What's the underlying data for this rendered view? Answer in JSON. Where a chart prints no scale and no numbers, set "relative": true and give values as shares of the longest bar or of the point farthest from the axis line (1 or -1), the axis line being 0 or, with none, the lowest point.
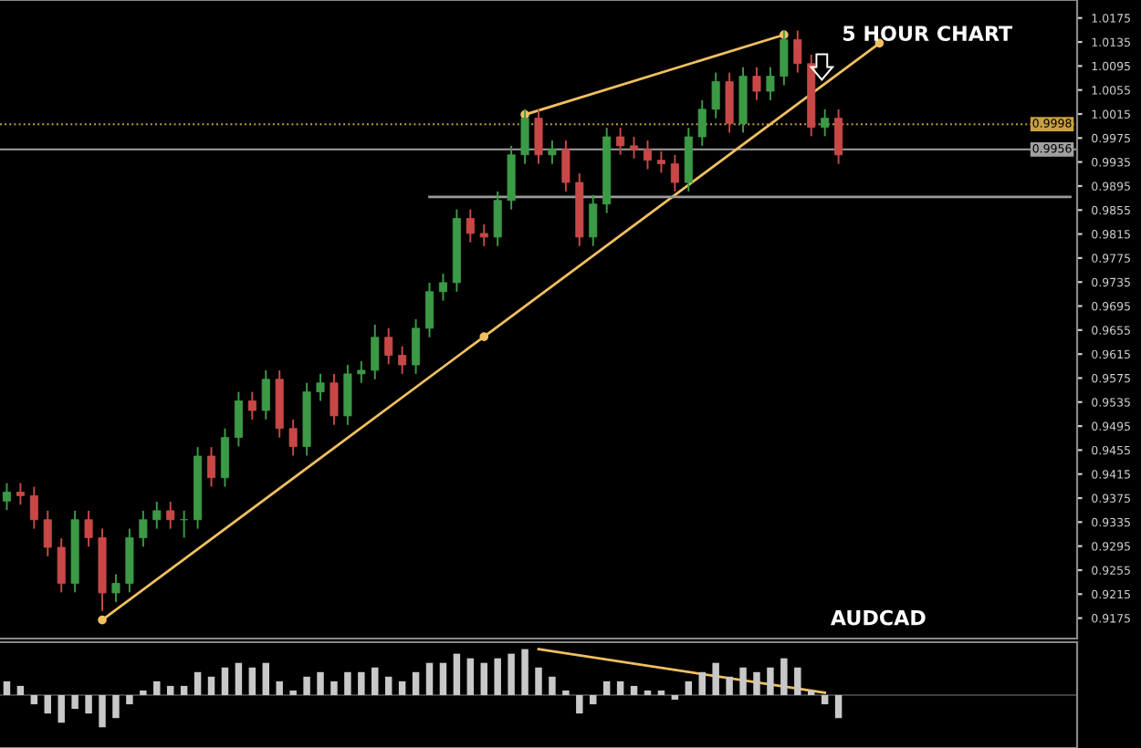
{
  "chart_data": [
    {
      "type": "candlestick",
      "annotations": [
        "5 HOUR CHART",
        "AUDCAD"
      ],
      "grid": false,
      "tick_labels": "y",
      "categories": [
        null,
        null,
        null,
        null,
        null,
        null,
        null,
        null,
        null,
        null,
        null,
        null,
        null,
        null,
        null,
        null,
        null,
        null,
        null,
        null,
        null,
        null,
        null,
        null,
        null,
        null,
        null,
        null,
        null,
        null,
        null,
        null,
        null,
        null,
        null,
        null,
        null,
        null,
        null,
        null,
        null,
        null,
        null,
        null,
        null,
        null,
        null,
        null,
        null,
        null,
        null,
        null,
        null,
        null,
        null,
        null,
        null,
        null,
        null,
        null,
        null,
        null,
        null,
        null,
        null,
        null,
        null,
        null,
        null,
        null,
        null,
        null,
        null,
        null,
        null,
        null,
        null,
        null,
        null
      ],
      "ohlc": [
        [
          0.937,
          0.94,
          0.9355,
          0.9385
        ],
        [
          0.9385,
          0.94,
          0.9364,
          0.9379
        ],
        [
          0.9379,
          0.9394,
          0.9324,
          0.9339
        ],
        [
          0.9339,
          0.9354,
          0.9278,
          0.9293
        ],
        [
          0.9293,
          0.9308,
          0.9218,
          0.9233
        ],
        [
          0.9233,
          0.9354,
          0.9218,
          0.9339
        ],
        [
          0.9339,
          0.9354,
          0.9294,
          0.9309
        ],
        [
          0.9309,
          0.9324,
          0.9187,
          0.9217
        ],
        [
          0.9217,
          0.9248,
          0.9202,
          0.9233
        ],
        [
          0.9233,
          0.9324,
          0.9218,
          0.9309
        ],
        [
          0.9309,
          0.9354,
          0.9294,
          0.9339
        ],
        [
          0.9339,
          0.9369,
          0.9324,
          0.9354
        ],
        [
          0.9354,
          0.9369,
          0.9324,
          0.9339
        ],
        [
          0.9339,
          0.9354,
          0.9309,
          0.9339
        ],
        [
          0.9339,
          0.946,
          0.9324,
          0.9445
        ],
        [
          0.9445,
          0.946,
          0.9394,
          0.9409
        ],
        [
          0.9409,
          0.9491,
          0.9394,
          0.9476
        ],
        [
          0.9476,
          0.9552,
          0.9461,
          0.9537
        ],
        [
          0.9537,
          0.9552,
          0.9506,
          0.9521
        ],
        [
          0.9521,
          0.9588,
          0.9506,
          0.9573
        ],
        [
          0.9573,
          0.9588,
          0.9476,
          0.9491
        ],
        [
          0.9491,
          0.9506,
          0.9446,
          0.9461
        ],
        [
          0.9461,
          0.9567,
          0.9446,
          0.9552
        ],
        [
          0.9552,
          0.9582,
          0.9537,
          0.9567
        ],
        [
          0.9567,
          0.9582,
          0.9497,
          0.9512
        ],
        [
          0.9512,
          0.9597,
          0.9497,
          0.9582
        ],
        [
          0.9582,
          0.9603,
          0.9567,
          0.9588
        ],
        [
          0.9588,
          0.9664,
          0.9573,
          0.9643
        ],
        [
          0.9643,
          0.9658,
          0.9598,
          0.9613
        ],
        [
          0.9613,
          0.9628,
          0.9582,
          0.9597
        ],
        [
          0.9597,
          0.9673,
          0.9582,
          0.9658
        ],
        [
          0.9658,
          0.9734,
          0.9643,
          0.9719
        ],
        [
          0.9719,
          0.9749,
          0.9704,
          0.9734
        ],
        [
          0.9734,
          0.9856,
          0.9719,
          0.9841
        ],
        [
          0.9841,
          0.9856,
          0.9801,
          0.9816
        ],
        [
          0.9816,
          0.9831,
          0.9795,
          0.981
        ],
        [
          0.981,
          0.9886,
          0.9795,
          0.9871
        ],
        [
          0.9871,
          0.9962,
          0.9856,
          0.9947
        ],
        [
          0.9947,
          1.0023,
          0.9932,
          1.0008
        ],
        [
          1.0008,
          1.0023,
          0.9932,
          0.9947
        ],
        [
          0.9947,
          0.9971,
          0.9932,
          0.9956
        ],
        [
          0.9956,
          0.9971,
          0.9886,
          0.9901
        ],
        [
          0.9901,
          0.9916,
          0.9795,
          0.981
        ],
        [
          0.981,
          0.988,
          0.9795,
          0.9865
        ],
        [
          0.9865,
          0.9992,
          0.985,
          0.9977
        ],
        [
          0.9977,
          0.9992,
          0.9947,
          0.9962
        ],
        [
          0.9962,
          0.9977,
          0.9941,
          0.9956
        ],
        [
          0.9956,
          0.9971,
          0.9923,
          0.9938
        ],
        [
          0.9938,
          0.9953,
          0.9917,
          0.9932
        ],
        [
          0.9932,
          0.9947,
          0.9886,
          0.9901
        ],
        [
          0.9901,
          0.9992,
          0.9886,
          0.9977
        ],
        [
          0.9977,
          1.0038,
          0.9962,
          1.0023
        ],
        [
          1.0023,
          1.0084,
          1.0008,
          1.0069
        ],
        [
          1.0069,
          1.0084,
          0.9984,
          0.9999
        ],
        [
          0.9999,
          1.0093,
          0.9984,
          1.0078
        ],
        [
          1.0078,
          1.0093,
          1.0038,
          1.0053
        ],
        [
          1.0053,
          1.0093,
          1.0038,
          1.0078
        ],
        [
          1.0078,
          1.0154,
          1.0063,
          1.0139
        ],
        [
          1.0139,
          1.0154,
          1.0084,
          1.0099
        ],
        [
          1.0099,
          1.0114,
          0.9978,
          0.9993
        ],
        [
          0.9993,
          1.0023,
          0.9978,
          1.0008
        ],
        [
          1.0008,
          1.0023,
          0.9932,
          0.9947
        ],
        null,
        null,
        null,
        null,
        null,
        null,
        null,
        null,
        null,
        null,
        null,
        null,
        null,
        null,
        null,
        null,
        null
      ],
      "series": [
        {
          "type": "line",
          "color": "#f0c060",
          "marker": "circle",
          "values": [
            null,
            null,
            null,
            null,
            null,
            null,
            null,
            0.9172,
            null,
            null,
            null,
            null,
            null,
            null,
            null,
            null,
            null,
            null,
            null,
            null,
            null,
            null,
            null,
            null,
            null,
            null,
            null,
            null,
            null,
            null,
            null,
            null,
            null,
            null,
            null,
            0.9644,
            null,
            null,
            null,
            null,
            null,
            null,
            null,
            null,
            null,
            null,
            null,
            null,
            null,
            null,
            null,
            null,
            null,
            null,
            null,
            null,
            null,
            null,
            null,
            null,
            null,
            null,
            null,
            null,
            1.0133,
            null,
            null,
            null,
            null,
            null,
            null,
            null,
            null,
            null,
            null,
            null,
            null,
            null,
            null
          ]
        },
        {
          "type": "line",
          "color": "#f0c060",
          "marker": "circle",
          "values": [
            null,
            null,
            null,
            null,
            null,
            null,
            null,
            null,
            null,
            null,
            null,
            null,
            null,
            null,
            null,
            null,
            null,
            null,
            null,
            null,
            null,
            null,
            null,
            null,
            null,
            null,
            null,
            null,
            null,
            null,
            null,
            null,
            null,
            null,
            null,
            null,
            null,
            null,
            1.0014,
            null,
            null,
            null,
            null,
            null,
            null,
            null,
            null,
            null,
            null,
            null,
            null,
            null,
            null,
            null,
            null,
            null,
            null,
            1.0147,
            null,
            null,
            null,
            null,
            null,
            null,
            null,
            null,
            null,
            null,
            null,
            null,
            null,
            null,
            null,
            null,
            null,
            null,
            null,
            null,
            null
          ]
        },
        {
          "type": "line",
          "color": "#9a9a9a",
          "marker": "none",
          "values": [
            null,
            null,
            null,
            null,
            null,
            null,
            null,
            null,
            null,
            null,
            null,
            null,
            null,
            null,
            null,
            null,
            null,
            null,
            null,
            null,
            null,
            null,
            null,
            null,
            null,
            null,
            null,
            null,
            null,
            null,
            null,
            0.9877,
            null,
            null,
            null,
            null,
            null,
            null,
            null,
            null,
            null,
            null,
            null,
            null,
            null,
            null,
            null,
            null,
            null,
            null,
            null,
            null,
            null,
            null,
            null,
            null,
            null,
            null,
            null,
            null,
            null,
            null,
            null,
            null,
            null,
            null,
            null,
            null,
            null,
            null,
            null,
            null,
            null,
            null,
            null,
            null,
            null,
            null,
            0.9877
          ]
        }
      ],
      "ref_lines": [
        {
          "axis": "y",
          "value": 0.9998,
          "label": "0.9998",
          "color": "#c8a040",
          "line_style": "dotted"
        },
        {
          "axis": "y",
          "value": 0.9956,
          "label": "0.9956",
          "color": "#a0a0a0",
          "line_style": "solid"
        }
      ],
      "ylim": [
        0.9141,
        1.0205
      ],
      "yticks": [
        0.9175,
        0.9215,
        0.9255,
        0.9295,
        0.9335,
        0.9375,
        0.9415,
        0.9455,
        0.9495,
        0.9535,
        0.9575,
        0.9615,
        0.9655,
        0.9695,
        0.9735,
        0.9775,
        0.9815,
        0.9855,
        0.9895,
        0.9935,
        0.9975,
        1.0015,
        1.0055,
        1.0095,
        1.0135,
        1.0175
      ]
    },
    {
      "type": "bar",
      "relative": true,
      "color": "#c8c8c8",
      "categories": [
        null,
        null,
        null,
        null,
        null,
        null,
        null,
        null,
        null,
        null,
        null,
        null,
        null,
        null,
        null,
        null,
        null,
        null,
        null,
        null,
        null,
        null,
        null,
        null,
        null,
        null,
        null,
        null,
        null,
        null,
        null,
        null,
        null,
        null,
        null,
        null,
        null,
        null,
        null,
        null,
        null,
        null,
        null,
        null,
        null,
        null,
        null,
        null,
        null,
        null,
        null,
        null,
        null,
        null,
        null,
        null,
        null,
        null,
        null,
        null,
        null,
        null,
        null,
        null,
        null,
        null,
        null,
        null,
        null,
        null,
        null,
        null,
        null,
        null,
        null,
        null,
        null,
        null,
        null
      ],
      "values": [
        0.3,
        0.2,
        -0.2,
        -0.4,
        -0.6,
        -0.3,
        -0.4,
        -0.7,
        -0.5,
        -0.2,
        0.1,
        0.3,
        0.2,
        0.2,
        0.5,
        0.4,
        0.6,
        0.7,
        0.6,
        0.7,
        0.3,
        0.1,
        0.4,
        0.5,
        0.3,
        0.5,
        0.5,
        0.6,
        0.4,
        0.3,
        0.5,
        0.7,
        0.7,
        0.9,
        0.8,
        0.7,
        0.8,
        0.9,
        1.0,
        0.6,
        0.4,
        0.1,
        -0.4,
        -0.2,
        0.3,
        0.3,
        0.2,
        0.1,
        0.1,
        -0.1,
        0.3,
        0.5,
        0.7,
        0.4,
        0.6,
        0.5,
        0.6,
        0.8,
        0.6,
        0.1,
        -0.2,
        -0.5,
        null,
        null,
        null,
        null,
        null,
        null,
        null,
        null,
        null,
        null,
        null,
        null,
        null,
        null,
        null,
        null,
        null
      ],
      "series": [
        {
          "type": "line",
          "color": "#f0c060",
          "marker": "none",
          "values": [
            null,
            null,
            null,
            null,
            null,
            null,
            null,
            null,
            null,
            null,
            null,
            null,
            null,
            null,
            null,
            null,
            null,
            null,
            null,
            null,
            null,
            null,
            null,
            null,
            null,
            null,
            null,
            null,
            null,
            null,
            null,
            null,
            null,
            null,
            null,
            null,
            null,
            null,
            null,
            1.0,
            null,
            null,
            null,
            null,
            null,
            null,
            null,
            null,
            null,
            null,
            null,
            null,
            null,
            null,
            null,
            null,
            null,
            null,
            null,
            null,
            0.05,
            null,
            null,
            null,
            null,
            null,
            null,
            null,
            null,
            null,
            null,
            null,
            null,
            null,
            null,
            null,
            null,
            null,
            null
          ]
        }
      ]
    }
  ]
}
